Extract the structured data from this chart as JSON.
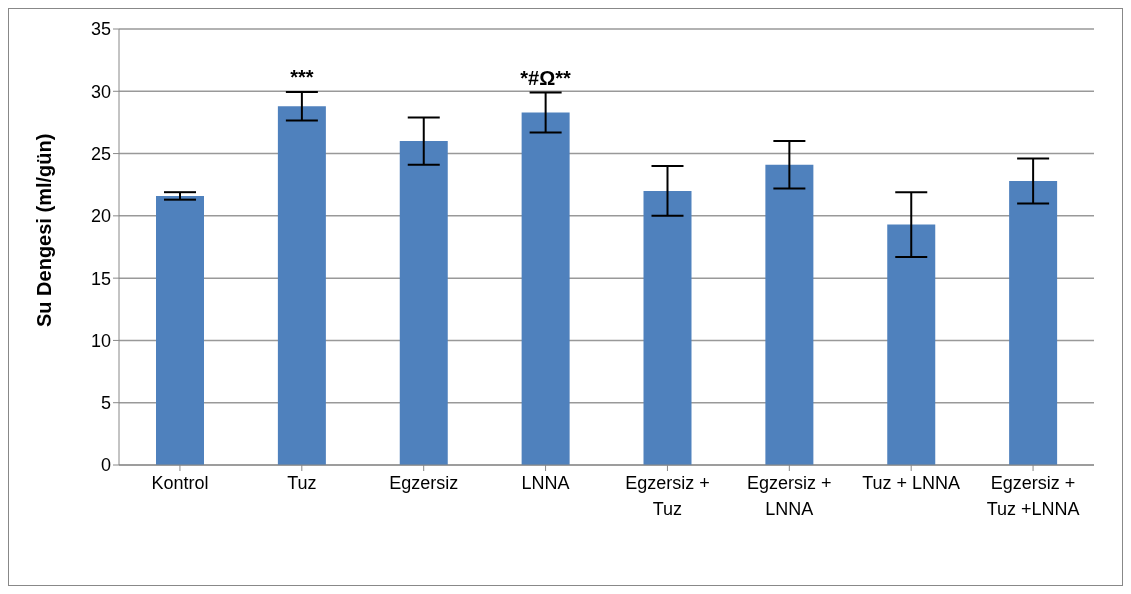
{
  "chart_data": {
    "type": "bar",
    "ylabel": "Su Dengesi (ml/gün)",
    "categories": [
      "Kontrol",
      "Tuz",
      "Egzersiz",
      "LNNA",
      "Egzersiz + Tuz",
      "Egzersiz + LNNA",
      "Tuz + LNNA",
      "Egzersiz + Tuz +LNNA"
    ],
    "values": [
      21.6,
      28.8,
      26.0,
      28.3,
      22.0,
      24.1,
      19.3,
      22.8
    ],
    "errors": [
      0.3,
      1.15,
      1.9,
      1.6,
      2.0,
      1.9,
      2.6,
      1.8
    ],
    "color": "#4f81bd",
    "ylim": [
      0,
      35
    ],
    "yticks": [
      0,
      5,
      10,
      15,
      20,
      25,
      30,
      35
    ],
    "grid": "y",
    "legend": false,
    "annotations": [
      {
        "text": "***",
        "x": "Tuz",
        "y": 28.8
      },
      {
        "text": "*#Ω**",
        "x": "LNNA",
        "y": 28.3
      }
    ]
  }
}
